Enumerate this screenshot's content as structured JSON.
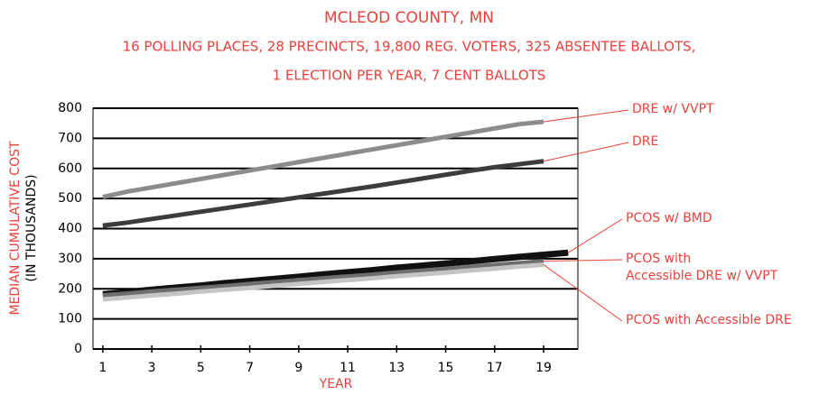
{
  "chart_data": {
    "type": "line",
    "title": "MCLEOD COUNTY, MN",
    "subtitle": "16 POLLING PLACES, 28 PRECINCTS, 19,800 REG. VOTERS, 325 ABSENTEE BALLOTS,",
    "subtitle2": "1 ELECTION PER YEAR, 7 CENT BALLOTS",
    "xlabel": "YEAR",
    "ylabel": "MEDIAN CUMULATIVE COST",
    "ylabel_unit": "(IN THOUSANDS)",
    "x": [
      1,
      2,
      3,
      4,
      5,
      6,
      7,
      8,
      9,
      10,
      11,
      12,
      13,
      14,
      15,
      16,
      17,
      18,
      19,
      20
    ],
    "series": [
      {
        "name": "DRE w/ VVPT",
        "color": "#8c8c8c",
        "values": [
          505,
          523,
          537,
          551,
          565,
          579,
          593,
          607,
          621,
          635,
          649,
          663,
          677,
          691,
          705,
          719,
          733,
          747,
          755,
          null
        ]
      },
      {
        "name": "DRE",
        "color": "#3c3c3c",
        "values": [
          410,
          420,
          432,
          444,
          456,
          468,
          480,
          492,
          504,
          516,
          528,
          540,
          553,
          566,
          579,
          592,
          604,
          614,
          624,
          null
        ]
      },
      {
        "name": "PCOS w/ BMD",
        "color": "#111111",
        "values": [
          182,
          189,
          197,
          204,
          211,
          219,
          226,
          233,
          240,
          248,
          255,
          262,
          270,
          277,
          284,
          291,
          299,
          306,
          313,
          320
        ]
      },
      {
        "name": "PCOS with\nAccessible DRE w/ VVPT",
        "color": "#6e6e6e",
        "values": [
          178,
          184,
          191,
          197,
          203,
          209,
          216,
          222,
          229,
          235,
          241,
          247,
          254,
          260,
          266,
          273,
          279,
          285,
          292,
          null
        ]
      },
      {
        "name": "PCOS with Accessible DRE",
        "color": "#c4c4c4",
        "values": [
          165,
          171,
          178,
          184,
          191,
          197,
          203,
          210,
          216,
          223,
          229,
          235,
          242,
          248,
          254,
          261,
          267,
          274,
          280,
          null
        ]
      }
    ],
    "xlim": [
      0.6,
      20.4
    ],
    "ylim": [
      0,
      800
    ],
    "xticks": [
      1,
      3,
      5,
      7,
      9,
      11,
      13,
      15,
      17,
      19
    ],
    "yticks": [
      0,
      100,
      200,
      300,
      400,
      500,
      600,
      700,
      800
    ],
    "grid": true
  }
}
